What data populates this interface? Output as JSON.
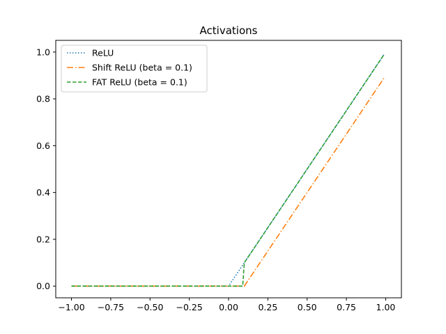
{
  "chart_data": {
    "type": "line",
    "title": "Activations",
    "xlabel": "",
    "ylabel": "",
    "xlim": [
      -1.1,
      1.1
    ],
    "ylim": [
      -0.05,
      1.05
    ],
    "xticks": [
      -1.0,
      -0.75,
      -0.5,
      -0.25,
      0.0,
      0.25,
      0.5,
      0.75,
      1.0
    ],
    "xtick_labels": [
      "−1.00",
      "−0.75",
      "−0.50",
      "−0.25",
      "0.00",
      "0.25",
      "0.50",
      "0.75",
      "1.00"
    ],
    "yticks": [
      0.0,
      0.2,
      0.4,
      0.6,
      0.8,
      1.0
    ],
    "ytick_labels": [
      "0.0",
      "0.2",
      "0.4",
      "0.6",
      "0.8",
      "1.0"
    ],
    "grid": false,
    "legend_position": "top-left",
    "series": [
      {
        "name": "ReLU",
        "color": "#1f77b4",
        "style": "dotted",
        "x": [
          -1.0,
          0.0,
          0.99
        ],
        "y": [
          0.0,
          0.0,
          0.99
        ]
      },
      {
        "name": "Shift ReLU (beta = 0.1)",
        "color": "#ff7f0e",
        "style": "dashdot",
        "x": [
          -1.0,
          0.1,
          0.99
        ],
        "y": [
          0.0,
          0.0,
          0.89
        ]
      },
      {
        "name": "FAT ReLU (beta = 0.1)",
        "color": "#2ca02c",
        "style": "dashed",
        "x": [
          -1.0,
          0.09,
          0.09,
          0.1,
          0.99
        ],
        "y": [
          0.0,
          0.0,
          0.0,
          0.1,
          0.99
        ]
      }
    ]
  }
}
